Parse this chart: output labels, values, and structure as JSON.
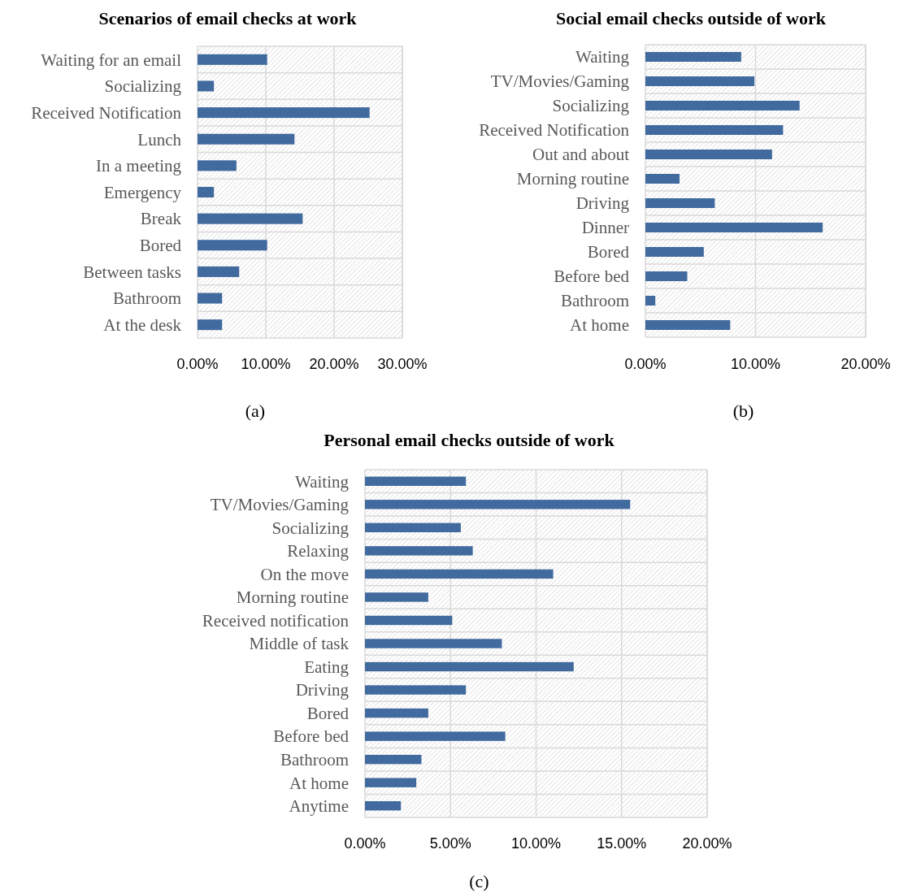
{
  "chart_data": [
    {
      "type": "bar",
      "orientation": "horizontal",
      "title": "Scenarios of email checks at work",
      "categories": [
        "Waiting for an email",
        "Socializing",
        "Received Notification",
        "Lunch",
        "In a meeting",
        "Emergency",
        "Break",
        "Bored",
        "Between tasks",
        "Bathroom",
        "At the desk"
      ],
      "values": [
        10.2,
        2.4,
        25.2,
        14.2,
        5.7,
        2.4,
        15.4,
        10.2,
        6.1,
        3.6,
        3.6
      ],
      "color": "#416a9e",
      "xlim": [
        0,
        30
      ],
      "xticks": [
        {
          "value": 0,
          "label": "0.00%"
        },
        {
          "value": 10,
          "label": "10.00%"
        },
        {
          "value": 20,
          "label": "20.00%"
        },
        {
          "value": 30,
          "label": "30.00%"
        }
      ],
      "grid": true,
      "annotations": [
        "(a)"
      ]
    },
    {
      "type": "bar",
      "orientation": "horizontal",
      "title": "Social email checks outside of work",
      "categories": [
        "Waiting",
        "TV/Movies/Gaming",
        "Socializing",
        "Received Notification",
        "Out and about",
        "Morning routine",
        "Driving",
        "Dinner",
        "Bored",
        "Before bed",
        "Bathroom",
        "At home"
      ],
      "values": [
        8.7,
        9.9,
        14.0,
        12.5,
        11.5,
        3.1,
        6.3,
        16.1,
        5.3,
        3.8,
        0.9,
        7.7
      ],
      "color": "#416a9e",
      "xlim": [
        0,
        20
      ],
      "xticks": [
        {
          "value": 0,
          "label": "0.00%"
        },
        {
          "value": 10,
          "label": "10.00%"
        },
        {
          "value": 20,
          "label": "20.00%"
        }
      ],
      "grid": true,
      "annotations": [
        "(b)"
      ]
    },
    {
      "type": "bar",
      "orientation": "horizontal",
      "title": "Personal email checks outside of work",
      "categories": [
        "Waiting",
        "TV/Movies/Gaming",
        "Socializing",
        "Relaxing",
        "On the move",
        "Morning routine",
        "Received notification",
        "Middle of task",
        "Eating",
        "Driving",
        "Bored",
        "Before bed",
        "Bathroom",
        "At home",
        "Anytime"
      ],
      "values": [
        5.9,
        15.5,
        5.6,
        6.3,
        11.0,
        3.7,
        5.1,
        8.0,
        12.2,
        5.9,
        3.7,
        8.2,
        3.3,
        3.0,
        2.1
      ],
      "color": "#416a9e",
      "xlim": [
        0,
        20
      ],
      "xticks": [
        {
          "value": 0,
          "label": "0.00%"
        },
        {
          "value": 5,
          "label": "5.00%"
        },
        {
          "value": 10,
          "label": "10.00%"
        },
        {
          "value": 15,
          "label": "15.00%"
        },
        {
          "value": 20,
          "label": "20.00%"
        }
      ],
      "grid": true,
      "annotations": [
        "(c)"
      ]
    }
  ]
}
